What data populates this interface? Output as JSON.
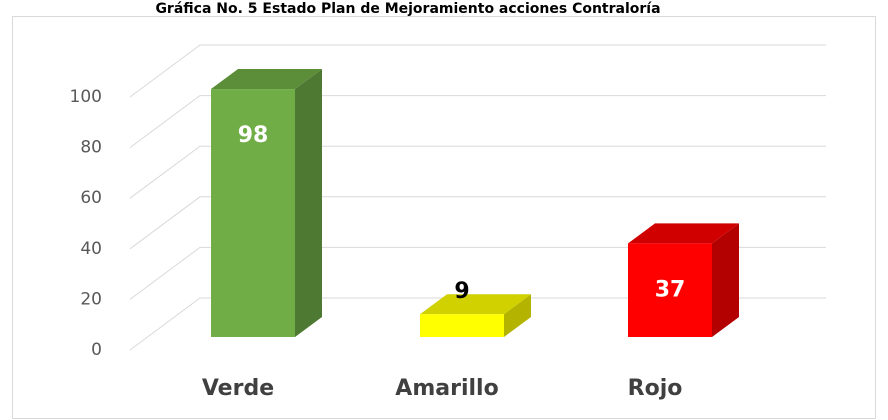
{
  "chart_data": {
    "type": "bar3d",
    "title": "Gráfica No. 5 Estado Plan de Mejoramiento acciones Contraloría",
    "categories": [
      "Verde",
      "Amarillo",
      "Rojo"
    ],
    "values": [
      98,
      9,
      37
    ],
    "colors": [
      "#70ad47",
      "#ffff00",
      "#ff0000"
    ],
    "ylim": [
      0,
      100
    ],
    "yticks": [
      0,
      20,
      40,
      60,
      80,
      100
    ],
    "grid": true
  }
}
